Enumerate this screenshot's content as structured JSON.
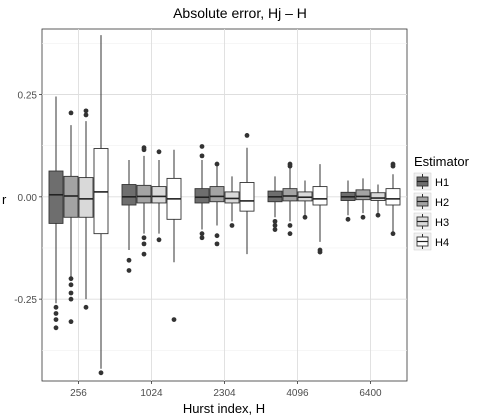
{
  "chart_data": {
    "type": "boxplot",
    "title": "Absolute error, Hj – H",
    "xlabel": "Hurst index, H",
    "ylabel": "r",
    "ylim": [
      -0.45,
      0.41
    ],
    "yticks": [
      -0.25,
      0.0,
      0.25
    ],
    "ytick_labels": [
      "-0.25",
      "0.00",
      "0.25"
    ],
    "grid": true,
    "categories": [
      "256",
      "1024",
      "2304",
      "4096",
      "6400"
    ],
    "legend": {
      "title": "Estimator",
      "placement": "right"
    },
    "series": [
      {
        "name": "H1",
        "color": "#6e6e6e",
        "boxes": [
          {
            "q1": -0.065,
            "median": 0.005,
            "q3": 0.063,
            "whisker_low": -0.26,
            "whisker_high": 0.245,
            "outliers": [
              -0.27,
              -0.285,
              -0.3,
              -0.32
            ]
          },
          {
            "q1": -0.02,
            "median": 0.0,
            "q3": 0.03,
            "whisker_low": -0.13,
            "whisker_high": 0.09,
            "outliers": [
              -0.155,
              -0.18
            ]
          },
          {
            "q1": -0.015,
            "median": -0.001,
            "q3": 0.02,
            "whisker_low": -0.08,
            "whisker_high": 0.09,
            "outliers": [
              0.123,
              0.1,
              -0.09,
              -0.1
            ]
          },
          {
            "q1": -0.012,
            "median": 0.0,
            "q3": 0.014,
            "whisker_low": -0.05,
            "whisker_high": 0.05,
            "outliers": [
              -0.06,
              -0.07,
              -0.08
            ]
          },
          {
            "q1": -0.009,
            "median": 0.0,
            "q3": 0.011,
            "whisker_low": -0.045,
            "whisker_high": 0.04,
            "outliers": [
              -0.055
            ]
          }
        ]
      },
      {
        "name": "H2",
        "color": "#a3a3a3",
        "boxes": [
          {
            "q1": -0.05,
            "median": 0.002,
            "q3": 0.05,
            "whisker_low": -0.195,
            "whisker_high": 0.175,
            "outliers": [
              0.205,
              -0.2,
              -0.215,
              -0.235,
              -0.25,
              -0.305
            ]
          },
          {
            "q1": -0.015,
            "median": 0.001,
            "q3": 0.028,
            "whisker_low": -0.09,
            "whisker_high": 0.1,
            "outliers": [
              0.115,
              0.12,
              -0.1,
              -0.115,
              -0.14
            ]
          },
          {
            "q1": -0.012,
            "median": 0.001,
            "q3": 0.025,
            "whisker_low": -0.07,
            "whisker_high": 0.075,
            "outliers": [
              0.08,
              -0.095,
              -0.115
            ]
          },
          {
            "q1": -0.01,
            "median": 0.002,
            "q3": 0.02,
            "whisker_low": -0.06,
            "whisker_high": 0.07,
            "outliers": [
              0.08,
              0.075,
              -0.07,
              -0.09
            ]
          },
          {
            "q1": -0.007,
            "median": 0.001,
            "q3": 0.017,
            "whisker_low": -0.04,
            "whisker_high": 0.045,
            "outliers": [
              -0.05
            ]
          }
        ]
      },
      {
        "name": "H3",
        "color": "#d9d9d9",
        "boxes": [
          {
            "q1": -0.05,
            "median": -0.005,
            "q3": 0.047,
            "whisker_low": -0.25,
            "whisker_high": 0.185,
            "outliers": [
              0.21,
              0.2,
              -0.27
            ]
          },
          {
            "q1": -0.015,
            "median": 0.001,
            "q3": 0.025,
            "whisker_low": -0.09,
            "whisker_high": 0.09,
            "outliers": [
              0.11,
              -0.105
            ]
          },
          {
            "q1": -0.015,
            "median": -0.004,
            "q3": 0.012,
            "whisker_low": -0.06,
            "whisker_high": 0.05,
            "outliers": [
              -0.07
            ]
          },
          {
            "q1": -0.01,
            "median": -0.001,
            "q3": 0.012,
            "whisker_low": -0.045,
            "whisker_high": 0.04,
            "outliers": [
              -0.05
            ]
          },
          {
            "q1": -0.009,
            "median": -0.003,
            "q3": 0.01,
            "whisker_low": -0.04,
            "whisker_high": 0.03,
            "outliers": [
              -0.045
            ]
          }
        ]
      },
      {
        "name": "H4",
        "color": "#ffffff",
        "boxes": [
          {
            "q1": -0.09,
            "median": 0.012,
            "q3": 0.118,
            "whisker_low": -0.42,
            "whisker_high": 0.395,
            "outliers": [
              -0.43
            ]
          },
          {
            "q1": -0.055,
            "median": -0.005,
            "q3": 0.045,
            "whisker_low": -0.16,
            "whisker_high": 0.115,
            "outliers": [
              -0.3
            ]
          },
          {
            "q1": -0.035,
            "median": -0.01,
            "q3": 0.035,
            "whisker_low": -0.14,
            "whisker_high": 0.12,
            "outliers": [
              0.15
            ]
          },
          {
            "q1": -0.02,
            "median": -0.005,
            "q3": 0.025,
            "whisker_low": -0.11,
            "whisker_high": 0.08,
            "outliers": [
              -0.13,
              -0.135
            ]
          },
          {
            "q1": -0.02,
            "median": -0.005,
            "q3": 0.02,
            "whisker_low": -0.09,
            "whisker_high": 0.055,
            "outliers": [
              0.08,
              0.075,
              -0.09
            ]
          }
        ]
      }
    ]
  }
}
